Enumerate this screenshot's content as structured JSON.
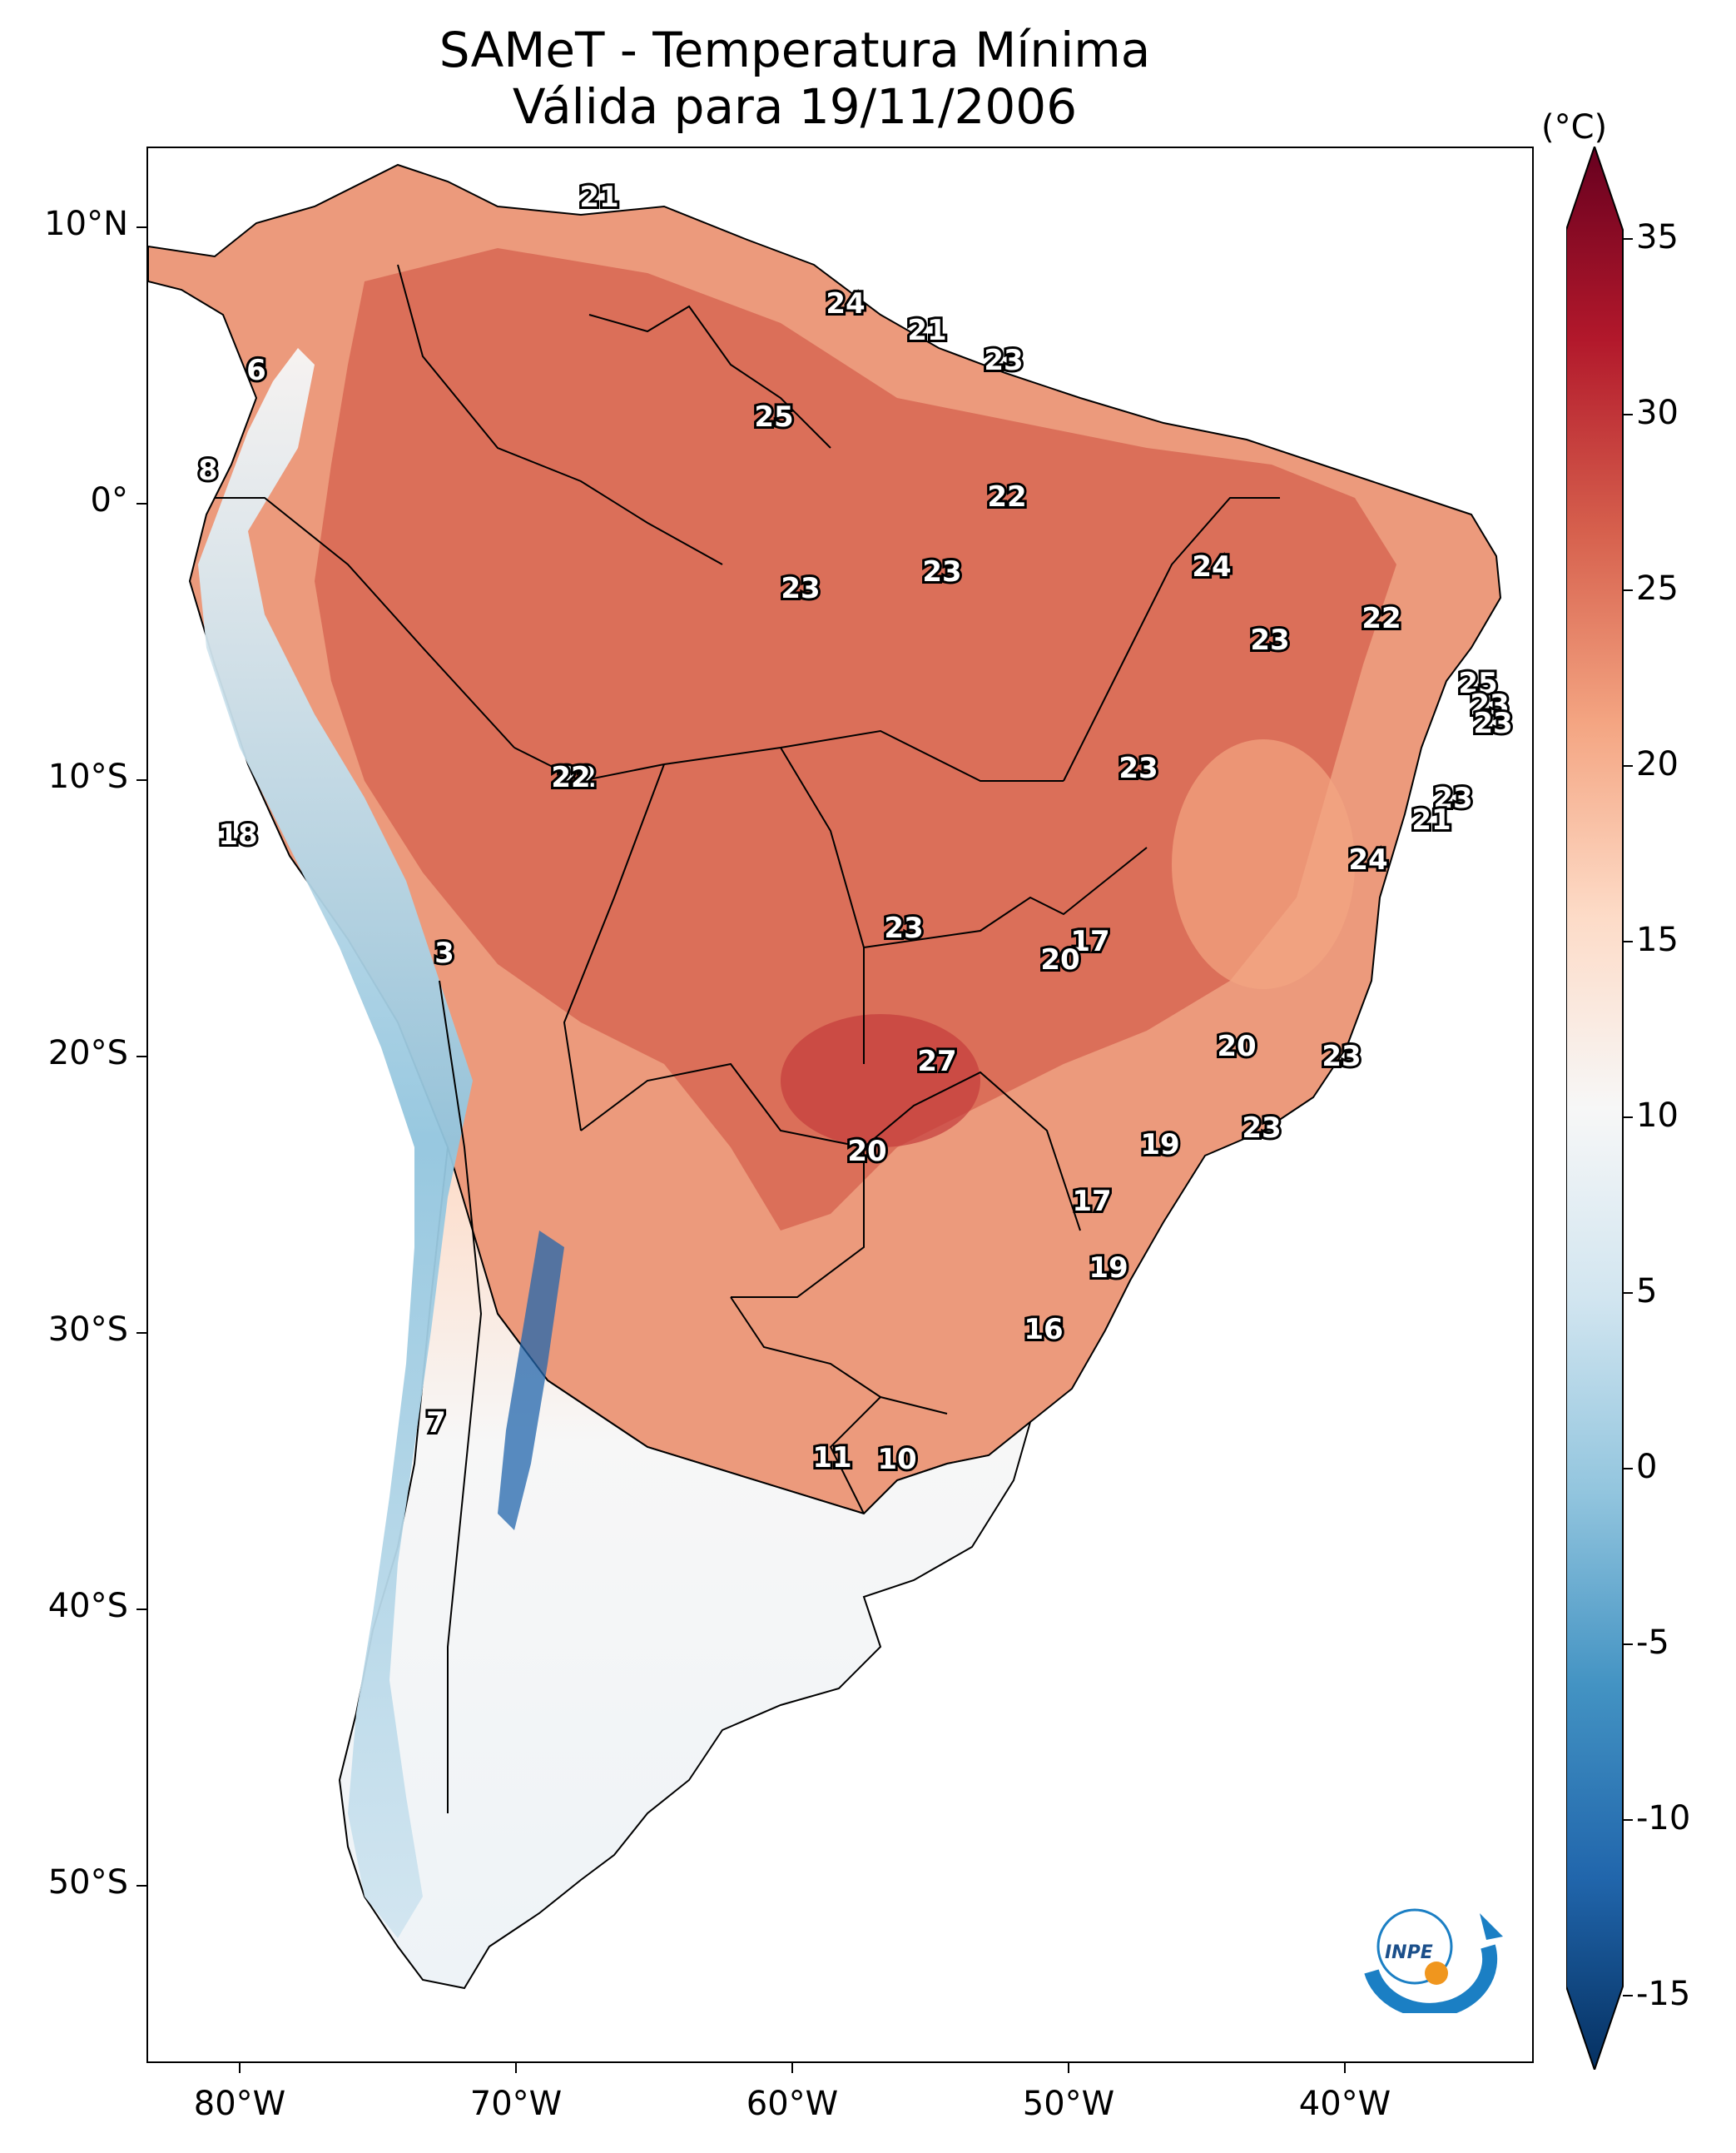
{
  "title": {
    "line1": "SAMeT - Temperatura Mínima",
    "line2": "Válida para 19/11/2006"
  },
  "axes": {
    "lat_labels": [
      "10°N",
      "0°",
      "10°S",
      "20°S",
      "30°S",
      "40°S",
      "50°S"
    ],
    "lon_labels": [
      "80°W",
      "70°W",
      "60°W",
      "50°W",
      "40°W"
    ]
  },
  "colorbar": {
    "unit": "(°C)",
    "tick_labels": [
      "35",
      "30",
      "25",
      "20",
      "15",
      "10",
      "5",
      "0",
      "-5",
      "-10",
      "-15"
    ],
    "colors": [
      "#67001f",
      "#b2182b",
      "#d6604d",
      "#f4a582",
      "#fddbc7",
      "#f7f7f7",
      "#d1e5f0",
      "#92c5de",
      "#4393c3",
      "#2166ac",
      "#053061"
    ]
  },
  "logo": {
    "text": "INPE"
  },
  "stations": [
    {
      "label": "21"
    },
    {
      "label": "24"
    },
    {
      "label": "21"
    },
    {
      "label": "23"
    },
    {
      "label": "6"
    },
    {
      "label": "25"
    },
    {
      "label": "8"
    },
    {
      "label": "22"
    },
    {
      "label": "23"
    },
    {
      "label": "23"
    },
    {
      "label": "24"
    },
    {
      "label": "22"
    },
    {
      "label": "23"
    },
    {
      "label": "25"
    },
    {
      "label": "23"
    },
    {
      "label": "23"
    },
    {
      "label": "23"
    },
    {
      "label": "22"
    },
    {
      "label": "22"
    },
    {
      "label": "23"
    },
    {
      "label": "21"
    },
    {
      "label": "18"
    },
    {
      "label": "24"
    },
    {
      "label": "3"
    },
    {
      "label": "23"
    },
    {
      "label": "17"
    },
    {
      "label": "20"
    },
    {
      "label": "20"
    },
    {
      "label": "27"
    },
    {
      "label": "23"
    },
    {
      "label": "23"
    },
    {
      "label": "19"
    },
    {
      "label": "20"
    },
    {
      "label": "17"
    },
    {
      "label": "19"
    },
    {
      "label": "16"
    },
    {
      "label": "7"
    },
    {
      "label": "11"
    },
    {
      "label": "10"
    }
  ]
}
